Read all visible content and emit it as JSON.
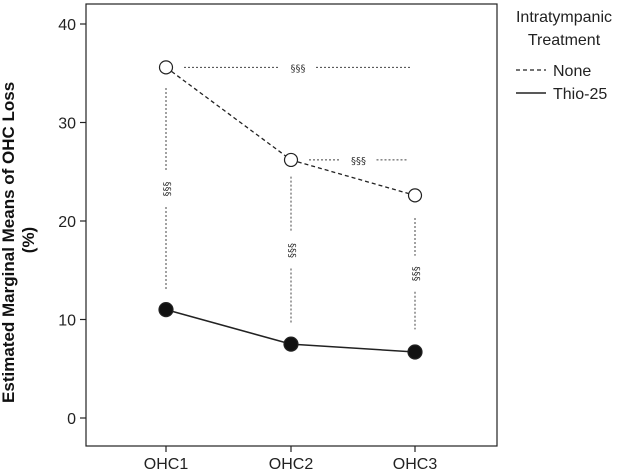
{
  "chart_data": {
    "type": "line",
    "title": "",
    "xlabel": "",
    "ylabel": "Estimated Marginal Means of OHC Loss (%)",
    "ylabel_lines": [
      "Estimated Marginal Means of OHC Loss",
      "(%)"
    ],
    "categories": [
      "OHC1",
      "OHC2",
      "OHC3"
    ],
    "ylim": [
      0,
      40
    ],
    "yticks": [
      0,
      10,
      20,
      30,
      40
    ],
    "series": [
      {
        "name": "None",
        "values": [
          35.6,
          26.2,
          22.6
        ],
        "line_style": "dashed",
        "marker": "open-circle"
      },
      {
        "name": "Thio-25",
        "values": [
          11.0,
          7.5,
          6.7
        ],
        "line_style": "solid",
        "marker": "filled-circle"
      }
    ],
    "legend": {
      "title_lines": [
        "Intratympanic",
        "Treatment"
      ],
      "placement": "right"
    },
    "annotations": [
      {
        "text": "§§§",
        "kind": "horizontal",
        "from_category": 0,
        "to_category": 2,
        "y": 35.6
      },
      {
        "text": "§§§",
        "kind": "horizontal",
        "from_category": 1,
        "to_category": 2,
        "y": 26.2
      },
      {
        "text": "§§§",
        "kind": "vertical",
        "category": 0,
        "y_from": 13.0,
        "y_to": 33.5
      },
      {
        "text": "§§§",
        "kind": "vertical",
        "category": 1,
        "y_from": 9.5,
        "y_to": 24.5
      },
      {
        "text": "§§§",
        "kind": "vertical",
        "category": 2,
        "y_from": 9.0,
        "y_to": 20.3
      }
    ]
  }
}
